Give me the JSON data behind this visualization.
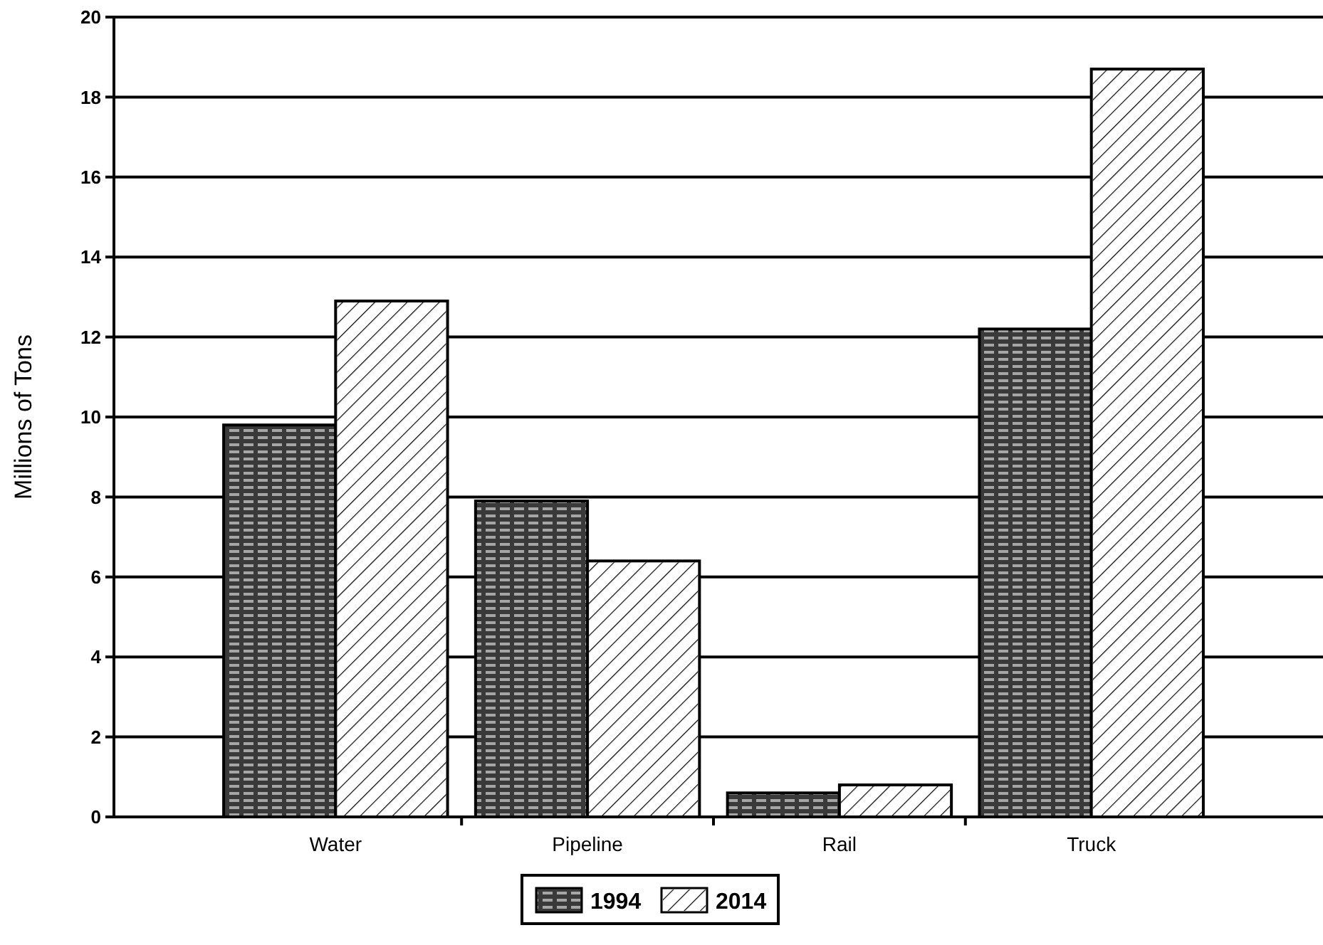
{
  "chart_data": {
    "type": "bar",
    "ylabel": "Millions of Tons",
    "categories": [
      "Water",
      "Pipeline",
      "Rail",
      "Truck"
    ],
    "series": [
      {
        "name": "1994",
        "color": "#3a3a3a",
        "values": [
          9.8,
          7.9,
          0.6,
          12.2
        ]
      },
      {
        "name": "2014",
        "color": "#ffffff",
        "values": [
          12.9,
          6.4,
          0.8,
          18.7
        ]
      }
    ],
    "ylim": [
      0,
      20
    ],
    "yticks": [
      0,
      2,
      4,
      6,
      8,
      10,
      12,
      14,
      16,
      18,
      20
    ],
    "grid": "y",
    "legend": "bottom"
  }
}
